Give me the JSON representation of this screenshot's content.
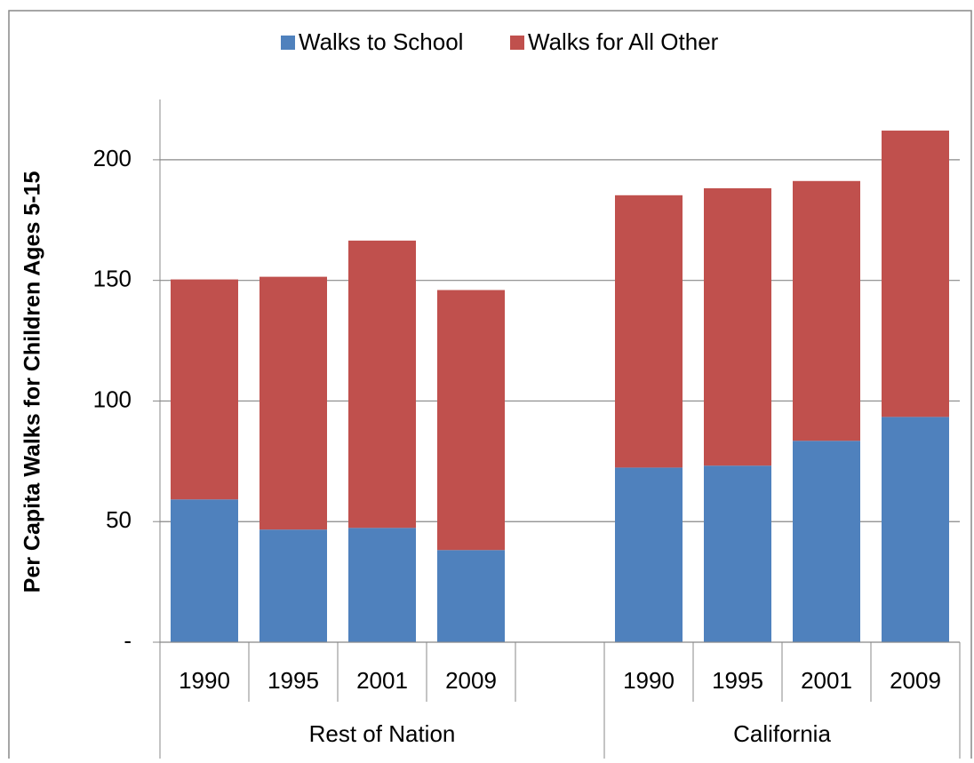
{
  "chart_data": {
    "type": "stacked_bar",
    "y_label": "Per Capita Walks for Children Ages 5-15",
    "categories": [
      "1990",
      "1995",
      "2001",
      "2009",
      null,
      "1990",
      "1995",
      "2001",
      "2009"
    ],
    "groups": [
      {
        "name": "Rest of Nation",
        "span": 4
      },
      {
        "name": "California",
        "span": 4
      }
    ],
    "series": [
      {
        "name": "Walks to School",
        "color": "#4f81bd",
        "values": [
          59.2,
          46.7,
          47.4,
          38.2,
          null,
          72.4,
          73.2,
          83.5,
          93.4
        ]
      },
      {
        "name": "Walks for All Other",
        "color": "#c0504d",
        "values": [
          91.2,
          104.8,
          119.1,
          107.8,
          null,
          112.9,
          115,
          107.7,
          118.7
        ]
      }
    ],
    "ylim": [
      0,
      225
    ],
    "yticks": [
      {
        "value": 0,
        "label": "-"
      },
      50,
      100,
      150,
      200
    ],
    "grid": true,
    "legend": "top"
  }
}
